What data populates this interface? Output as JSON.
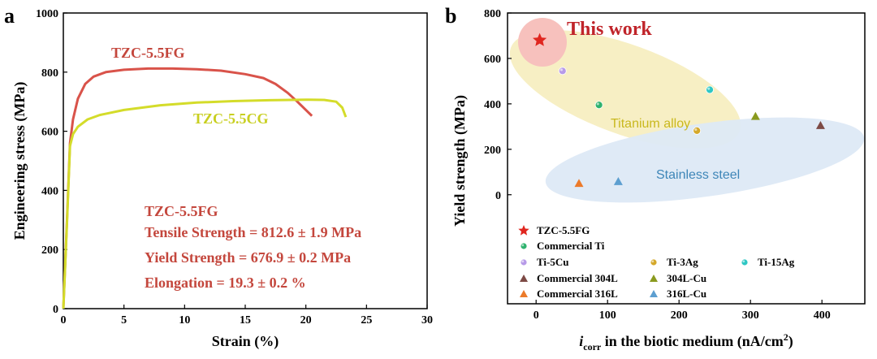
{
  "colors": {
    "fg_curve": "#d9534a",
    "cg_curve": "#d4dc2a",
    "annotation_red": "#c4473d",
    "titanium_region": "#f7efc4",
    "steel_region": "#dde9f6",
    "this_work_circle": "#f7c1bd",
    "star": "#e0261f"
  },
  "chart_data": [
    {
      "panel": "a",
      "type": "line",
      "xlabel": "Strain (%)",
      "ylabel": "Engineering stress (MPa)",
      "xlim": [
        0,
        30
      ],
      "ylim": [
        0,
        1000
      ],
      "xticks": [
        "0",
        "5",
        "10",
        "15",
        "20",
        "25",
        "30"
      ],
      "yticks": [
        "0",
        "200",
        "400",
        "600",
        "800",
        "1000"
      ],
      "grid": false,
      "series": [
        {
          "name": "TZC-5.5FG",
          "color": "#d9534a",
          "x": [
            0,
            0.3,
            0.55,
            0.8,
            1.2,
            1.8,
            2.5,
            3.5,
            5,
            7,
            9,
            11,
            13,
            15,
            16.5,
            17.5,
            18.5,
            19.3,
            20,
            20.5
          ],
          "y": [
            0,
            300,
            560,
            640,
            710,
            760,
            785,
            800,
            808,
            812,
            812,
            810,
            805,
            793,
            780,
            760,
            730,
            700,
            672,
            652
          ]
        },
        {
          "name": "TZC-5.5CG",
          "color": "#d4dc2a",
          "x": [
            0,
            0.3,
            0.55,
            0.8,
            1.2,
            2,
            3,
            5,
            8,
            11,
            14,
            17,
            20,
            21.5,
            22.5,
            23,
            23.3
          ],
          "y": [
            0,
            290,
            550,
            590,
            615,
            640,
            655,
            672,
            688,
            697,
            702,
            705,
            707,
            706,
            700,
            680,
            648
          ]
        }
      ],
      "annotations": [
        "TZC-5.5FG",
        "Tensile Strength = 812.6 ± 1.9 MPa",
        "Yield Strength = 676.9 ± 0.2 MPa",
        "Elongation = 19.3 ± 0.2 %"
      ]
    },
    {
      "panel": "b",
      "type": "scatter",
      "xlabel": "i",
      "xlabel_sub": "corr",
      "xlabel_rest": " in the biotic medium (nA/cm",
      "xlabel_sup": "2",
      "xlabel_end": ")",
      "ylabel": "Yield strength (MPa)",
      "xlim": [
        -40,
        460
      ],
      "ylim": [
        -480,
        800
      ],
      "xticks": [
        "0",
        "100",
        "200",
        "300",
        "400"
      ],
      "yticks": [
        "0",
        "200",
        "400",
        "600",
        "800"
      ],
      "grid": false,
      "title_annotation": "This work",
      "regions": [
        "Titanium alloy",
        "Stainless steel"
      ],
      "points": [
        {
          "name": "TZC-5.5FG",
          "marker": "star",
          "color": "#e0261f",
          "x": 5,
          "y": 680
        },
        {
          "name": "Commercial Ti",
          "marker": "circle",
          "color": "#2fb26e",
          "x": 88,
          "y": 395
        },
        {
          "name": "Ti-5Cu",
          "marker": "circle",
          "color": "#b79ae8",
          "x": 37,
          "y": 545
        },
        {
          "name": "Ti-3Ag",
          "marker": "circle",
          "color": "#d4a82a",
          "x": 225,
          "y": 282
        },
        {
          "name": "Ti-15Ag",
          "marker": "circle",
          "color": "#2ec7c4",
          "x": 243,
          "y": 462
        },
        {
          "name": "Commercial 304L",
          "marker": "triangle",
          "color": "#7d4a45",
          "x": 398,
          "y": 305
        },
        {
          "name": "304L-Cu",
          "marker": "triangle",
          "color": "#8a9a1e",
          "x": 307,
          "y": 345
        },
        {
          "name": "Commercial 316L",
          "marker": "triangle",
          "color": "#ec7a2a",
          "x": 60,
          "y": 50
        },
        {
          "name": "316L-Cu",
          "marker": "triangle",
          "color": "#5d9fd0",
          "x": 115,
          "y": 58
        }
      ]
    }
  ]
}
